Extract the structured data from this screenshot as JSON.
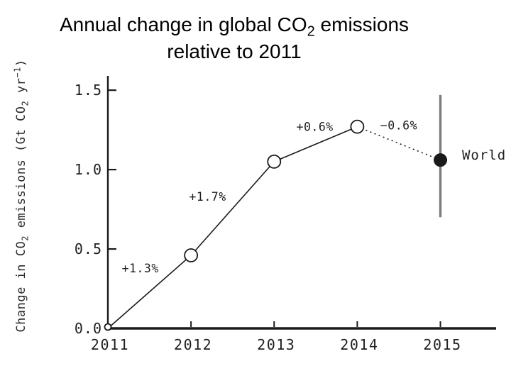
{
  "title": {
    "line1_a": "Annual change in global CO",
    "line1_sub": "2",
    "line1_b": " emissions",
    "line2": "relative to 2011"
  },
  "axes": {
    "ylabel_a": "Change in CO",
    "ylabel_a_sub": "2",
    "ylabel_b": " emissions (Gt CO",
    "ylabel_b_sub": "2",
    "ylabel_c": " yr",
    "ylabel_c_sup": "−1",
    "ylabel_d": ")"
  },
  "chart_data": {
    "type": "line",
    "title": "Annual change in global CO2 emissions relative to 2011",
    "ylabel": "Change in CO2 emissions (Gt CO2 yr-1)",
    "xlabel": "",
    "x": [
      2011,
      2012,
      2013,
      2014,
      2015
    ],
    "series": [
      {
        "name": "World",
        "values": [
          0.0,
          0.46,
          1.05,
          1.27,
          1.06
        ]
      }
    ],
    "point_styles": [
      "open-small",
      "open",
      "open",
      "open",
      "filled"
    ],
    "segment_styles": [
      "solid",
      "solid",
      "solid",
      "dotted"
    ],
    "error_bar": {
      "x": 2015,
      "low": 0.7,
      "high": 1.47,
      "color": "#7d7d7d"
    },
    "annotations": [
      {
        "text": "+1.3%",
        "x": 2011.39,
        "y": 0.38
      },
      {
        "text": "+1.7%",
        "x": 2012.2,
        "y": 0.83
      },
      {
        "text": "+0.6%",
        "x": 2013.49,
        "y": 1.27
      },
      {
        "text": "−0.6%",
        "x": 2014.5,
        "y": 1.28
      }
    ],
    "series_label": {
      "text": "World",
      "x": 2015.26,
      "y": 1.09
    },
    "xticks": [
      2011,
      2012,
      2013,
      2014,
      2015
    ],
    "yticks": [
      0.0,
      0.5,
      1.0,
      1.5
    ],
    "xlim": [
      2011,
      2015.67
    ],
    "ylim": [
      0,
      1.59
    ],
    "grid": false,
    "legend": "none",
    "colors": {
      "line": "#1a1a1a",
      "axis": "#1a1a1a",
      "text": "#1f1f1f",
      "error_bar": "#7d7d7d",
      "open_fill": "#ffffff"
    }
  }
}
